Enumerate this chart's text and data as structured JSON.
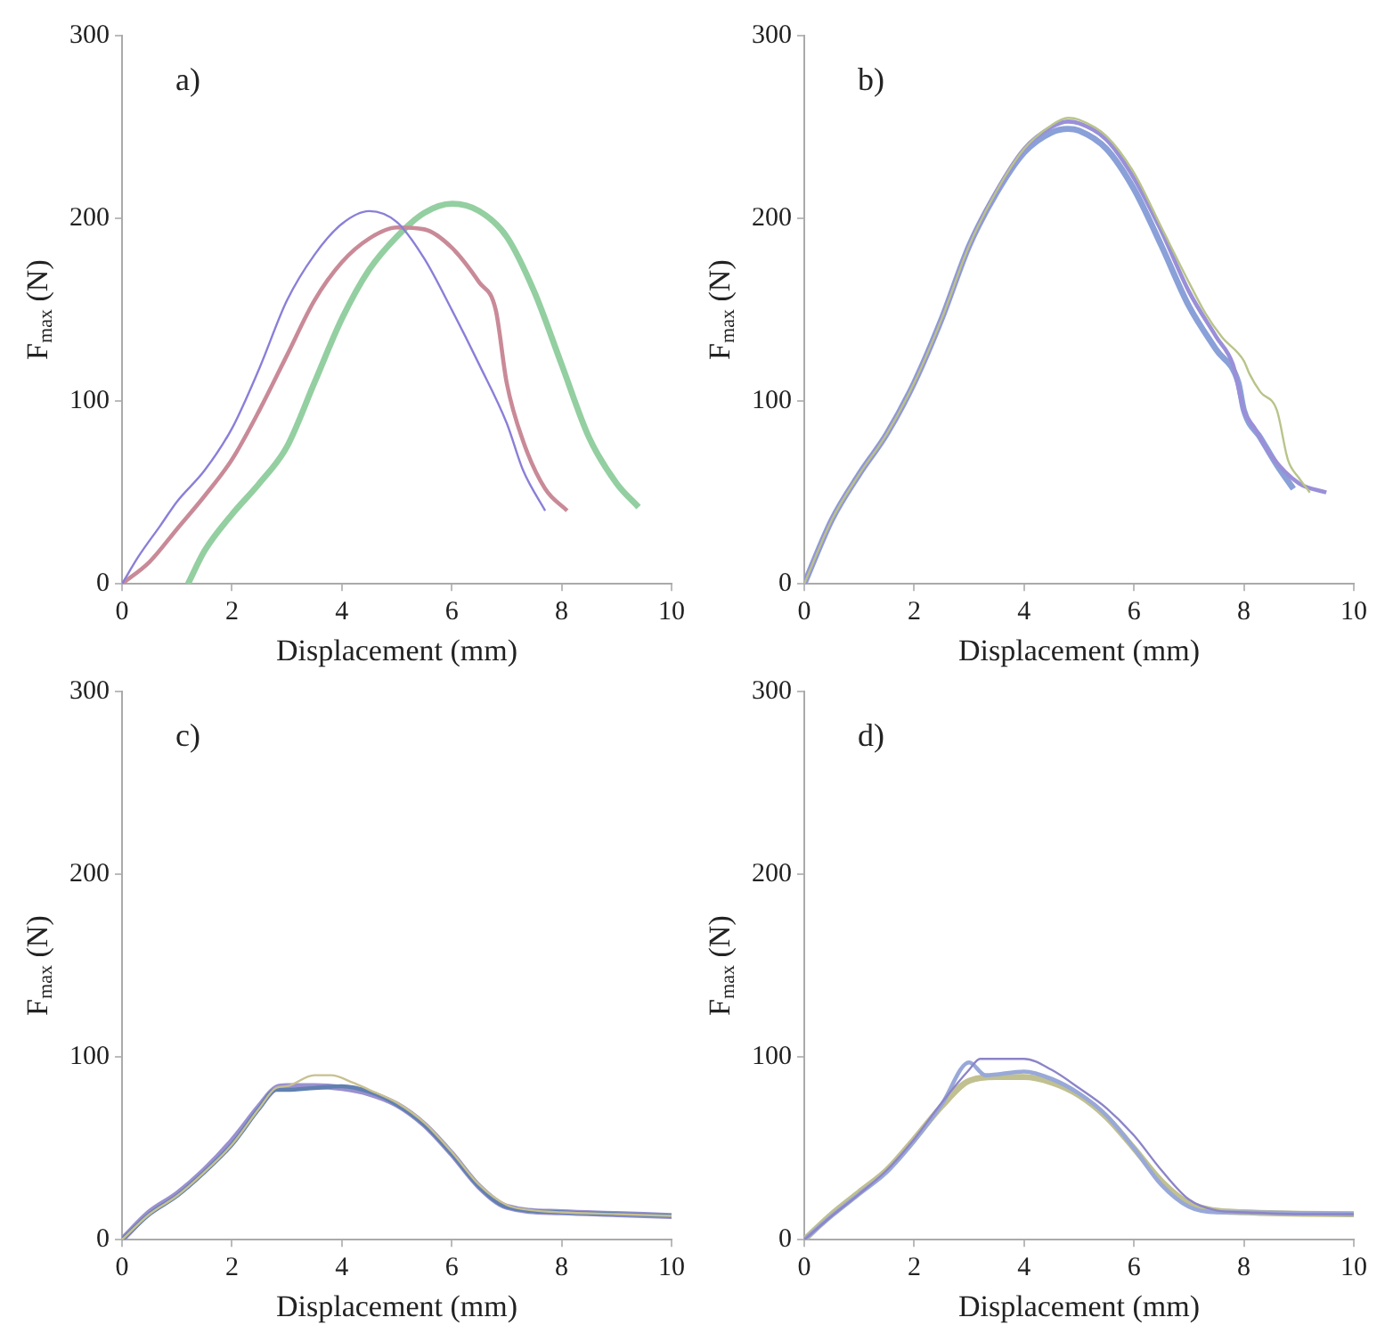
{
  "chart_data": [
    {
      "type": "line",
      "annotations": [
        "a)"
      ],
      "xlabel": "Displacement (mm)",
      "ylabel": "F$_{max}$ (N)",
      "xlim": [
        0,
        10
      ],
      "xticks": [
        0,
        2,
        4,
        6,
        8,
        10
      ],
      "ylim": [
        0,
        300
      ],
      "yticks": [
        0,
        100,
        200,
        300
      ],
      "grid": false,
      "legend": false,
      "marker": "none",
      "line_style": "solid",
      "series": [
        {
          "color": "#8a7fd8",
          "x": [
            0,
            0.3,
            0.7,
            1,
            1.5,
            2,
            2.5,
            3,
            3.5,
            4,
            4.5,
            5,
            5.5,
            6,
            6.5,
            7,
            7.3,
            7.7
          ],
          "values": [
            0,
            15,
            32,
            45,
            62,
            85,
            118,
            155,
            180,
            197,
            204,
            198,
            178,
            150,
            120,
            88,
            62,
            40
          ]
        },
        {
          "color": "#c98a98",
          "x": [
            0,
            0.5,
            1,
            1.5,
            2,
            2.5,
            3,
            3.5,
            4,
            4.5,
            5,
            5.5,
            6,
            6.5,
            6.8,
            7,
            7.3,
            7.7,
            8.1
          ],
          "values": [
            0,
            12,
            30,
            48,
            68,
            95,
            125,
            155,
            176,
            189,
            195,
            194,
            184,
            165,
            150,
            110,
            78,
            52,
            40
          ]
        },
        {
          "color": "#93cfa0",
          "x": [
            1.2,
            1.5,
            2,
            2.5,
            3,
            3.5,
            4,
            4.5,
            5,
            5.5,
            6,
            6.5,
            7,
            7.5,
            8,
            8.5,
            9,
            9.4
          ],
          "values": [
            0,
            18,
            38,
            55,
            75,
            110,
            145,
            172,
            190,
            203,
            208,
            204,
            190,
            160,
            120,
            80,
            55,
            42
          ]
        }
      ]
    },
    {
      "type": "line",
      "annotations": [
        "b)"
      ],
      "xlabel": "Displacement (mm)",
      "ylabel": "F$_{max}$ (N)",
      "xlim": [
        0,
        10
      ],
      "xticks": [
        0,
        2,
        4,
        6,
        8,
        10
      ],
      "ylim": [
        0,
        300
      ],
      "yticks": [
        0,
        100,
        200,
        300
      ],
      "grid": false,
      "legend": false,
      "marker": "none",
      "line_style": "solid",
      "series": [
        {
          "color": "#b8c48a",
          "x": [
            0,
            0.5,
            1,
            1.5,
            2,
            2.5,
            3,
            3.5,
            4,
            4.5,
            4.8,
            5,
            5.5,
            6,
            6.5,
            7,
            7.3,
            7.6,
            8,
            8.1,
            8.3,
            8.6,
            8.8,
            9,
            9.2
          ],
          "values": [
            0,
            35,
            60,
            82,
            110,
            145,
            185,
            215,
            238,
            251,
            255,
            254,
            245,
            225,
            195,
            165,
            148,
            135,
            122,
            115,
            105,
            95,
            68,
            58,
            50
          ]
        },
        {
          "color": "#9a8fd8",
          "x": [
            0,
            0.5,
            1,
            1.5,
            2,
            2.5,
            3,
            3.5,
            4,
            4.5,
            4.8,
            5,
            5.5,
            6,
            6.5,
            7,
            7.5,
            7.8,
            8,
            8.2,
            8.5,
            9,
            9.5
          ],
          "values": [
            0,
            35,
            60,
            82,
            110,
            145,
            185,
            215,
            238,
            250,
            253,
            252,
            243,
            222,
            193,
            160,
            135,
            120,
            95,
            85,
            70,
            55,
            50
          ]
        },
        {
          "color": "#8aa0d8",
          "x": [
            0,
            0.5,
            1,
            1.5,
            2,
            2.5,
            3,
            3.5,
            4,
            4.5,
            4.8,
            5,
            5.5,
            6,
            6.5,
            7,
            7.5,
            7.9,
            8,
            8.3,
            8.6,
            8.9
          ],
          "values": [
            0,
            35,
            60,
            82,
            110,
            145,
            185,
            214,
            236,
            247,
            249,
            248,
            238,
            216,
            185,
            152,
            128,
            110,
            95,
            80,
            65,
            52
          ]
        }
      ]
    },
    {
      "type": "line",
      "annotations": [
        "c)"
      ],
      "xlabel": "Displacement (mm)",
      "ylabel": "F$_{max}$ (N)",
      "xlim": [
        0,
        10
      ],
      "xticks": [
        0,
        2,
        4,
        6,
        8,
        10
      ],
      "ylim": [
        0,
        300
      ],
      "yticks": [
        0,
        100,
        200,
        300
      ],
      "grid": false,
      "legend": false,
      "marker": "none",
      "line_style": "solid",
      "series": [
        {
          "color": "#c8c090",
          "x": [
            0,
            0.5,
            1,
            1.5,
            2,
            2.5,
            2.8,
            3,
            3.5,
            3.8,
            4.2,
            4.5,
            5,
            5.5,
            6,
            6.5,
            7,
            7.5,
            8,
            9,
            10
          ],
          "values": [
            0,
            14,
            24,
            37,
            52,
            72,
            83,
            84,
            90,
            90,
            86,
            82,
            75,
            64,
            48,
            30,
            19,
            16,
            15,
            14,
            13
          ]
        },
        {
          "color": "#6080b0",
          "x": [
            0,
            0.5,
            1,
            1.5,
            2,
            2.5,
            2.8,
            3,
            3.5,
            4,
            4.5,
            5,
            5.5,
            6,
            6.5,
            7,
            8,
            9,
            10
          ],
          "values": [
            0,
            14,
            24,
            37,
            52,
            72,
            82,
            82,
            83,
            84,
            81,
            74,
            63,
            47,
            29,
            18,
            15,
            14,
            13
          ]
        },
        {
          "color": "#9a90d0",
          "x": [
            0,
            0.5,
            1,
            1.5,
            2,
            2.5,
            2.8,
            3,
            3.5,
            4,
            4.5,
            5,
            5.5,
            6,
            6.5,
            7,
            8,
            9,
            10
          ],
          "values": [
            0,
            15,
            25,
            38,
            54,
            73,
            83,
            84,
            84,
            83,
            80,
            74,
            63,
            47,
            29,
            18,
            15,
            14,
            13
          ]
        }
      ]
    },
    {
      "type": "line",
      "annotations": [
        "d)"
      ],
      "xlabel": "Displacement (mm)",
      "ylabel": "F$_{max}$ (N)",
      "xlim": [
        0,
        10
      ],
      "xticks": [
        0,
        2,
        4,
        6,
        8,
        10
      ],
      "ylim": [
        0,
        300
      ],
      "yticks": [
        0,
        100,
        200,
        300
      ],
      "grid": false,
      "legend": false,
      "marker": "none",
      "line_style": "solid",
      "series": [
        {
          "color": "#8c84c8",
          "x": [
            0,
            0.5,
            1,
            1.5,
            2,
            2.5,
            3,
            3.2,
            4,
            4.5,
            5,
            5.5,
            6,
            6.5,
            7,
            7.5,
            8,
            9,
            10
          ],
          "values": [
            0,
            13,
            25,
            38,
            55,
            75,
            93,
            99,
            99,
            93,
            83,
            72,
            57,
            38,
            22,
            16,
            15,
            14,
            14
          ]
        },
        {
          "color": "#98a8d8",
          "x": [
            0,
            0.5,
            1,
            1.5,
            2,
            2.5,
            3,
            3.3,
            4,
            4.5,
            5,
            5.5,
            6,
            6.5,
            7,
            7.5,
            8,
            10
          ],
          "values": [
            0,
            13,
            25,
            37,
            54,
            74,
            97,
            90,
            92,
            88,
            80,
            68,
            50,
            30,
            18,
            15,
            15,
            14
          ]
        },
        {
          "color": "#c0c090",
          "x": [
            0,
            0.5,
            1,
            1.5,
            2,
            2.5,
            3,
            3.5,
            4,
            4.5,
            5,
            5.5,
            6,
            6.5,
            7,
            8,
            10
          ],
          "values": [
            0,
            14,
            26,
            38,
            55,
            73,
            87,
            89,
            89,
            86,
            79,
            67,
            50,
            32,
            20,
            15,
            14
          ]
        }
      ]
    }
  ]
}
